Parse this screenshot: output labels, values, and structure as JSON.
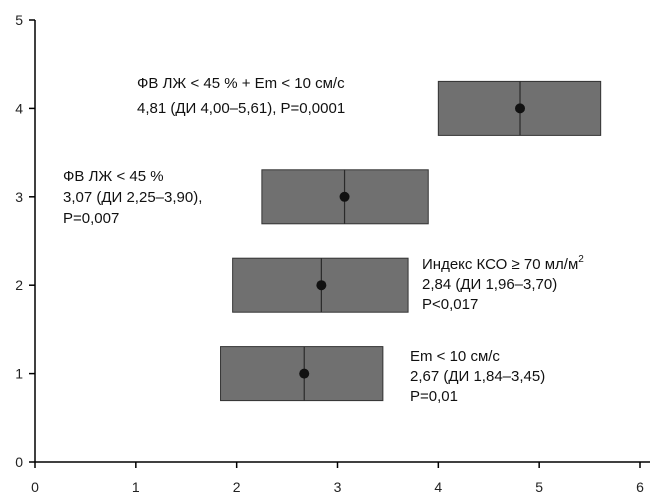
{
  "chart_data": {
    "type": "forest",
    "title": "",
    "xlabel": "",
    "ylabel": "",
    "xlim": [
      0,
      6
    ],
    "ylim": [
      0,
      5
    ],
    "x_ticks": [
      "0",
      "1",
      "2",
      "3",
      "4",
      "5",
      "6"
    ],
    "y_ticks": [
      "0",
      "1",
      "2",
      "3",
      "4",
      "5"
    ],
    "grid": false,
    "colors": {
      "box": "#707070",
      "box_stroke": "#333333",
      "point": "#111111",
      "axis": "#000000"
    },
    "items": [
      {
        "y": 1,
        "estimate": 2.67,
        "ci_low": 1.84,
        "ci_high": 3.45,
        "label_lines": [
          "Em < 10 см/с",
          "2,67 (ДИ 1,84–3,45)",
          "P=0,01"
        ],
        "label_side": "right"
      },
      {
        "y": 2,
        "estimate": 2.84,
        "ci_low": 1.96,
        "ci_high": 3.7,
        "label_lines": [
          "Индекс КСО ≥ 70 мл/м",
          "2,84 (ДИ 1,96–3,70)",
          "P<0,017"
        ],
        "label_sup": "2",
        "label_side": "right"
      },
      {
        "y": 3,
        "estimate": 3.07,
        "ci_low": 2.25,
        "ci_high": 3.9,
        "label_lines": [
          "ФВ ЛЖ < 45 %",
          "3,07 (ДИ 2,25–3,90),",
          "P=0,007"
        ],
        "label_side": "left"
      },
      {
        "y": 4,
        "estimate": 4.81,
        "ci_low": 4.0,
        "ci_high": 5.61,
        "label_lines": [
          "ФВ ЛЖ < 45 % + Em < 10 см/с",
          "4,81 (ДИ 4,00–5,61), P=0,0001"
        ],
        "label_side": "left"
      }
    ]
  }
}
